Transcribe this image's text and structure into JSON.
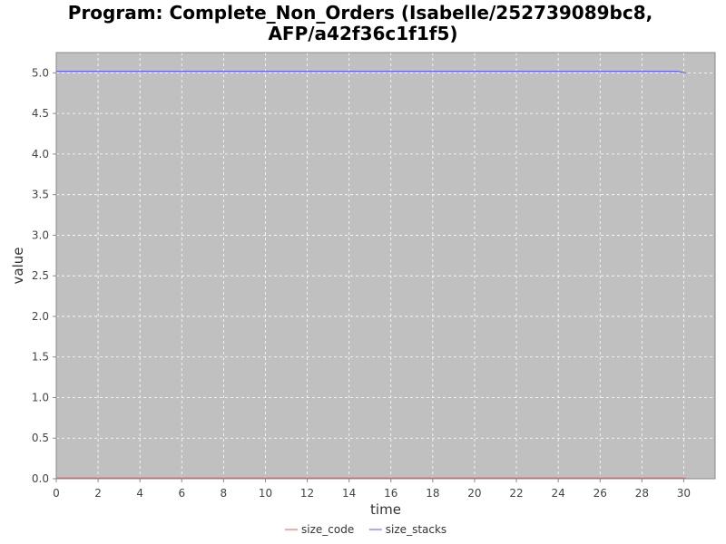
{
  "chart_data": {
    "type": "line",
    "title": "Program: Complete_Non_Orders (Isabelle/252739089bc8, AFP/a42f36c1f1f5)",
    "title_lines": [
      "Program: Complete_Non_Orders (Isabelle/252739089bc8,",
      "AFP/a42f36c1f1f5)"
    ],
    "xlabel": "time",
    "ylabel": "value",
    "xlim": [
      0,
      31.5
    ],
    "ylim": [
      0,
      5.25
    ],
    "x_ticks": [
      "0",
      "2",
      "4",
      "6",
      "8",
      "10",
      "12",
      "14",
      "16",
      "18",
      "20",
      "22",
      "24",
      "26",
      "28",
      "30"
    ],
    "y_ticks": [
      "0.0",
      "0.5",
      "1.0",
      "1.5",
      "2.0",
      "2.5",
      "3.0",
      "3.5",
      "4.0",
      "4.5",
      "5.0"
    ],
    "grid": true,
    "legend_position": "bottom",
    "series": [
      {
        "name": "size_code",
        "color": "#ff5555",
        "x": [
          0,
          29.7,
          30.1
        ],
        "y": [
          0.01,
          0.01,
          0.01
        ]
      },
      {
        "name": "size_stacks",
        "color": "#5555ff",
        "x": [
          0,
          29.7,
          30.1
        ],
        "y": [
          5.02,
          5.02,
          5.0
        ]
      }
    ]
  },
  "colors": {
    "plot_background": "#c0c0c0",
    "grid": "#ffffff"
  }
}
